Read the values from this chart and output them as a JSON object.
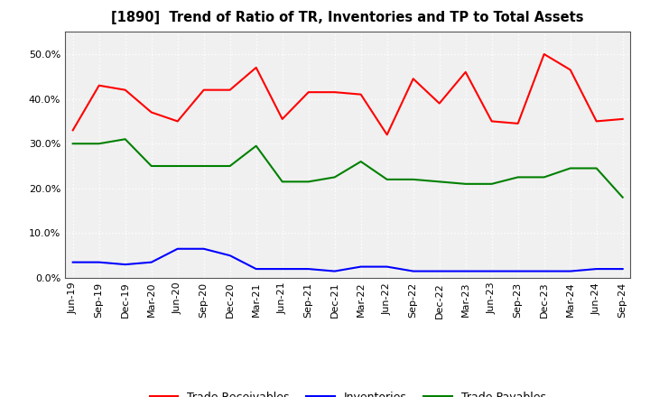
{
  "title": "[1890]  Trend of Ratio of TR, Inventories and TP to Total Assets",
  "x_labels": [
    "Jun-19",
    "Sep-19",
    "Dec-19",
    "Mar-20",
    "Jun-20",
    "Sep-20",
    "Dec-20",
    "Mar-21",
    "Jun-21",
    "Sep-21",
    "Dec-21",
    "Mar-22",
    "Jun-22",
    "Sep-22",
    "Dec-22",
    "Mar-23",
    "Jun-23",
    "Sep-23",
    "Dec-23",
    "Mar-24",
    "Jun-24",
    "Sep-24"
  ],
  "trade_receivables": [
    33.0,
    43.0,
    42.0,
    37.0,
    35.0,
    42.0,
    42.0,
    47.0,
    35.5,
    41.5,
    41.5,
    41.0,
    32.0,
    44.5,
    39.0,
    46.0,
    35.0,
    34.5,
    50.0,
    46.5,
    35.0,
    35.5
  ],
  "inventories": [
    3.5,
    3.5,
    3.0,
    3.5,
    6.5,
    6.5,
    5.0,
    2.0,
    2.0,
    2.0,
    1.5,
    2.5,
    2.5,
    1.5,
    1.5,
    1.5,
    1.5,
    1.5,
    1.5,
    1.5,
    2.0,
    2.0
  ],
  "trade_payables": [
    30.0,
    30.0,
    31.0,
    25.0,
    25.0,
    25.0,
    25.0,
    29.5,
    21.5,
    21.5,
    22.5,
    26.0,
    22.0,
    22.0,
    21.5,
    21.0,
    21.0,
    22.5,
    22.5,
    24.5,
    24.5,
    18.0
  ],
  "tr_color": "#ff0000",
  "inv_color": "#0000ff",
  "tp_color": "#008000",
  "bg_color": "#ffffff",
  "plot_bg_color": "#f0f0f0",
  "grid_color": "#ffffff",
  "ylim": [
    0,
    55
  ],
  "yticks": [
    0,
    10,
    20,
    30,
    40,
    50
  ],
  "legend_labels": [
    "Trade Receivables",
    "Inventories",
    "Trade Payables"
  ]
}
